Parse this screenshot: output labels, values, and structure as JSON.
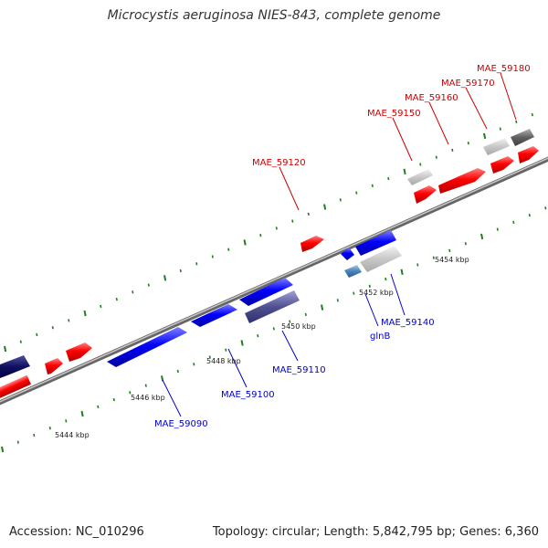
{
  "title": "Microcystis aeruginosa NIES-843, complete genome",
  "footer": {
    "accession": "Accession: NC_010296",
    "summary": "Topology: circular; Length: 5,842,795 bp; Genes: 6,360"
  },
  "colors": {
    "forward": "#ff0000",
    "reverse": "#0000ff",
    "backbone": "#888888",
    "tick": "#1f7f1f",
    "label_forward": "#cc0000",
    "label_reverse": "#0000cc"
  },
  "scale_labels": [
    "5444 kbp",
    "5446 kbp",
    "5448 kbp",
    "5450 kbp",
    "5452 kbp",
    "5454 kbp"
  ],
  "gene_labels_forward": [
    "MAE_59120",
    "MAE_59150",
    "MAE_59160",
    "MAE_59170",
    "MAE_59180"
  ],
  "gene_labels_reverse": [
    "MAE_59090",
    "MAE_59100",
    "MAE_59110",
    "glnB",
    "MAE_59140"
  ]
}
